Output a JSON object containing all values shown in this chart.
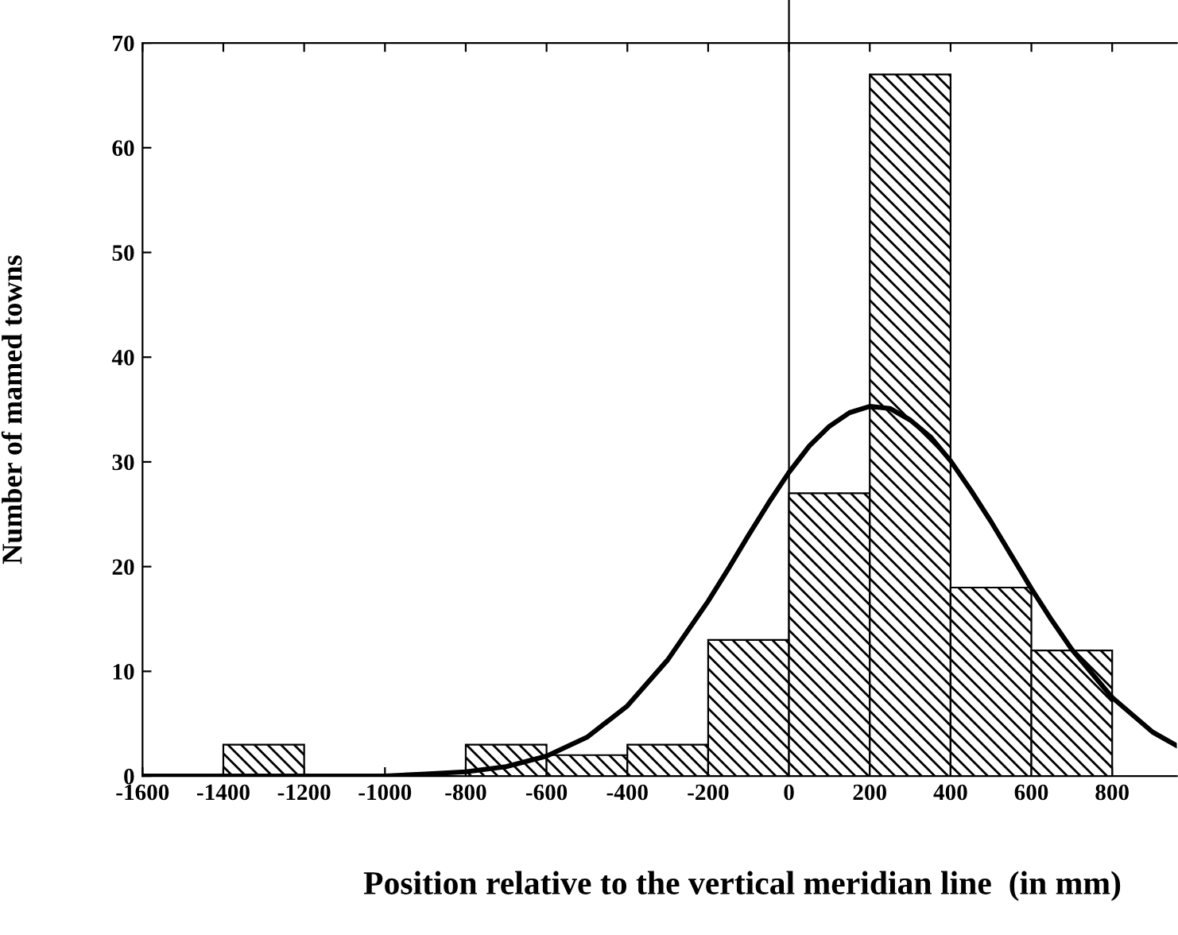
{
  "chart_data": {
    "type": "histogram",
    "xlabel": "Position relative to the vertical meridian line  (in mm)",
    "ylabel": "Number of mamed towns",
    "bins": [
      -1600,
      -1400,
      -1200,
      -1000,
      -800,
      -600,
      -400,
      -200,
      0,
      200,
      400,
      600,
      800
    ],
    "values": [
      0,
      3,
      0,
      0,
      3,
      2,
      3,
      13,
      27,
      67,
      18,
      12
    ],
    "color": "#000000",
    "series": [
      {
        "type": "line",
        "color": "#000000",
        "x": [
          -1600,
          -1400,
          -1200,
          -1000,
          -900,
          -800,
          -700,
          -600,
          -500,
          -400,
          -300,
          -200,
          -150,
          -100,
          -50,
          0,
          50,
          100,
          150,
          200,
          250,
          300,
          350,
          400,
          450,
          500,
          550,
          600,
          650,
          700,
          800,
          900,
          960
        ],
        "values": [
          0,
          0,
          0,
          0,
          0.2,
          0.4,
          0.9,
          1.9,
          3.7,
          6.7,
          11.1,
          16.7,
          19.8,
          23.0,
          26.1,
          29.0,
          31.5,
          33.4,
          34.7,
          35.3,
          35.1,
          34.0,
          32.4,
          30.1,
          27.3,
          24.3,
          21.1,
          17.9,
          14.9,
          12.1,
          7.5,
          4.2,
          2.9
        ]
      }
    ],
    "xlim": [
      -1600,
      960
    ],
    "xticks": [
      -1600,
      -1400,
      -1200,
      -1000,
      -800,
      -600,
      -400,
      -200,
      0,
      200,
      400,
      600,
      800
    ],
    "ylim": [
      0,
      70
    ],
    "yticks": [
      0,
      10,
      20,
      30,
      40,
      50,
      60,
      70
    ],
    "ref_lines": [
      {
        "axis": "x",
        "value": 0,
        "color": "#000000"
      }
    ],
    "grid": false,
    "legend": false
  }
}
